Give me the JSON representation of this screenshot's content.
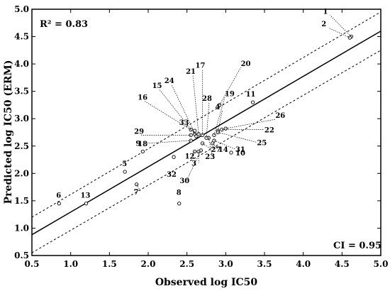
{
  "chart_data": {
    "type": "scatter",
    "xlabel": "Observed log IC50",
    "ylabel": "Predicted log IC50 (ERM)",
    "xlim": [
      0.5,
      5.0
    ],
    "ylim": [
      0.5,
      5.0
    ],
    "xticks": [
      "0.5",
      "1.0",
      "1.5",
      "2.0",
      "2.5",
      "3.0",
      "3.5",
      "4.0",
      "4.5",
      "5.0"
    ],
    "yticks": [
      "0.5",
      "1.0",
      "1.5",
      "2.0",
      "2.5",
      "3.0",
      "3.5",
      "4.0",
      "4.5",
      "5.0"
    ],
    "annotations": {
      "r2": "R² = 0.83",
      "ci": "CI = 0.95"
    },
    "regression_line": {
      "x": [
        0.5,
        5.0
      ],
      "y": [
        0.88,
        4.6
      ]
    },
    "ci_upper": {
      "x": [
        0.5,
        5.0
      ],
      "y": [
        1.2,
        4.95
      ]
    },
    "ci_lower": {
      "x": [
        0.5,
        5.0
      ],
      "y": [
        0.55,
        4.25
      ]
    },
    "points": [
      {
        "id": "1",
        "x": 4.62,
        "y": 4.5
      },
      {
        "id": "2",
        "x": 4.6,
        "y": 4.48
      },
      {
        "id": "3",
        "x": 2.65,
        "y": 2.4
      },
      {
        "id": "4",
        "x": 2.9,
        "y": 2.78
      },
      {
        "id": "5",
        "x": 1.7,
        "y": 2.03
      },
      {
        "id": "6",
        "x": 0.85,
        "y": 1.45
      },
      {
        "id": "7",
        "x": 1.85,
        "y": 1.8
      },
      {
        "id": "8",
        "x": 2.4,
        "y": 1.45
      },
      {
        "id": "9",
        "x": 1.93,
        "y": 2.4
      },
      {
        "id": "10",
        "x": 3.07,
        "y": 2.38
      },
      {
        "id": "11",
        "x": 3.35,
        "y": 3.3
      },
      {
        "id": "12",
        "x": 2.6,
        "y": 2.4
      },
      {
        "id": "13",
        "x": 1.2,
        "y": 1.45
      },
      {
        "id": "14",
        "x": 2.83,
        "y": 2.55
      },
      {
        "id": "15",
        "x": 2.6,
        "y": 2.72
      },
      {
        "id": "16",
        "x": 2.55,
        "y": 2.8
      },
      {
        "id": "17",
        "x": 2.7,
        "y": 2.7
      },
      {
        "id": "18",
        "x": 2.55,
        "y": 2.6
      },
      {
        "id": "19",
        "x": 2.85,
        "y": 2.7
      },
      {
        "id": "20",
        "x": 2.92,
        "y": 3.25
      },
      {
        "id": "21",
        "x": 2.65,
        "y": 2.72
      },
      {
        "id": "22",
        "x": 2.95,
        "y": 2.8
      },
      {
        "id": "23",
        "x": 2.78,
        "y": 2.65
      },
      {
        "id": "24",
        "x": 2.62,
        "y": 2.68
      },
      {
        "id": "25",
        "x": 2.9,
        "y": 2.75
      },
      {
        "id": "26",
        "x": 3.0,
        "y": 2.82
      },
      {
        "id": "27",
        "x": 2.7,
        "y": 2.55
      },
      {
        "id": "28",
        "x": 2.75,
        "y": 2.65
      },
      {
        "id": "29",
        "x": 2.55,
        "y": 2.7
      },
      {
        "id": "30",
        "x": 2.68,
        "y": 2.42
      },
      {
        "id": "31",
        "x": 2.85,
        "y": 2.6
      },
      {
        "id": "32",
        "x": 2.33,
        "y": 2.3
      },
      {
        "id": "33",
        "x": 2.6,
        "y": 2.78
      }
    ]
  }
}
